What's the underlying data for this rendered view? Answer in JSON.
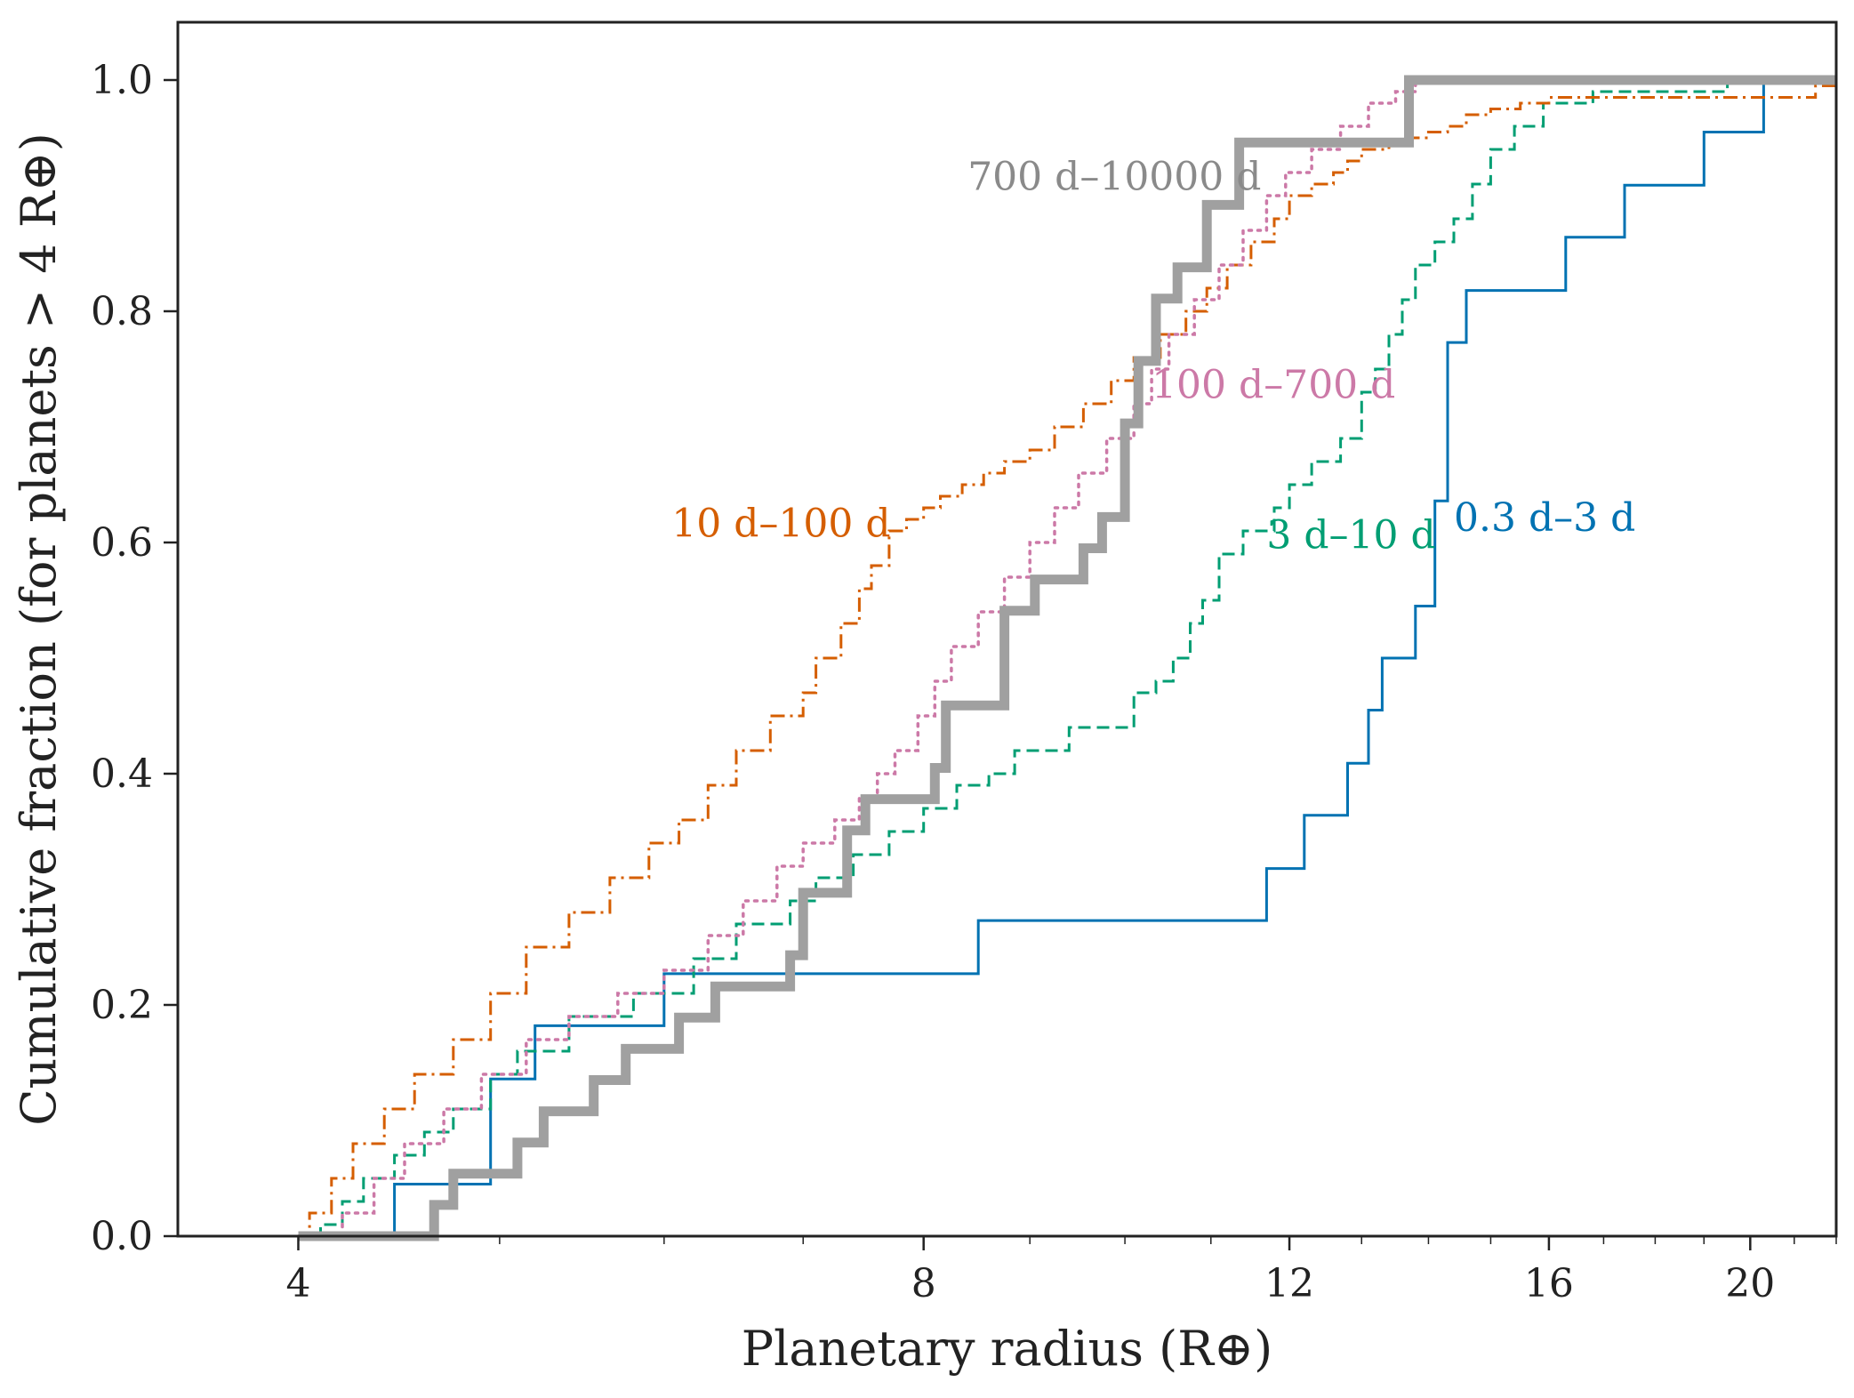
{
  "chart_data": {
    "type": "line",
    "step": true,
    "xlabel": "Planetary radius (R⊕)",
    "ylabel": "Cumulative fraction (for planets > 4 R⊕)",
    "xscale": "log",
    "xlim": [
      3.5,
      22
    ],
    "ylim": [
      0,
      1.05
    ],
    "x_ticks": [
      4,
      8,
      12,
      16,
      20
    ],
    "y_ticks": [
      0.0,
      0.2,
      0.4,
      0.6,
      0.8,
      1.0
    ],
    "x_tick_labels": [
      "4",
      "8",
      "12",
      "16",
      "20"
    ],
    "y_tick_labels": [
      "0.0",
      "0.2",
      "0.4",
      "0.6",
      "0.8",
      "1.0"
    ],
    "series": [
      {
        "name": "0.3 d–3 d",
        "label": "0.3 d–3 d",
        "color": "#0072B2",
        "style": "solid",
        "width": 3,
        "label_at": [
          14.4,
          0.61
        ],
        "x": [
          4.0,
          4.45,
          4.95,
          5.2,
          6.0,
          8.5,
          11.7,
          12.2,
          12.8,
          13.1,
          13.3,
          13.8,
          14.1,
          14.3,
          14.6,
          16.3,
          17.4,
          19.0,
          20.3,
          22
        ],
        "y": [
          0.0,
          0.045,
          0.136,
          0.182,
          0.227,
          0.273,
          0.318,
          0.364,
          0.409,
          0.455,
          0.5,
          0.545,
          0.636,
          0.773,
          0.818,
          0.864,
          0.909,
          0.955,
          1.0,
          1.0
        ]
      },
      {
        "name": "3 d–10 d",
        "label": "3 d–10 d",
        "color": "#009E73",
        "style": "dashed",
        "width": 3,
        "label_at": [
          11.7,
          0.595
        ],
        "x": [
          4.0,
          4.1,
          4.2,
          4.3,
          4.45,
          4.6,
          4.75,
          4.95,
          5.1,
          5.4,
          5.8,
          6.2,
          6.5,
          6.9,
          7.1,
          7.4,
          7.7,
          8.0,
          8.3,
          8.6,
          8.85,
          9.4,
          10.1,
          10.35,
          10.55,
          10.75,
          10.9,
          11.1,
          11.4,
          11.8,
          12.0,
          12.3,
          12.7,
          13.0,
          13.2,
          13.4,
          13.6,
          13.8,
          14.1,
          14.4,
          14.7,
          15.0,
          15.4,
          15.9,
          16.8,
          17.3,
          18.2,
          19.5,
          22
        ],
        "y": [
          0.0,
          0.01,
          0.03,
          0.05,
          0.07,
          0.09,
          0.11,
          0.14,
          0.16,
          0.19,
          0.21,
          0.24,
          0.27,
          0.29,
          0.31,
          0.33,
          0.35,
          0.37,
          0.39,
          0.4,
          0.42,
          0.44,
          0.47,
          0.48,
          0.5,
          0.53,
          0.55,
          0.59,
          0.61,
          0.63,
          0.65,
          0.67,
          0.69,
          0.73,
          0.75,
          0.78,
          0.81,
          0.84,
          0.86,
          0.88,
          0.91,
          0.94,
          0.96,
          0.98,
          0.99,
          0.99,
          0.99,
          1.0,
          1.0
        ]
      },
      {
        "name": "10 d–100 d",
        "label": "10 d–100 d",
        "color": "#D55E00",
        "style": "dashdot",
        "width": 3,
        "label_at": [
          6.05,
          0.605
        ],
        "x": [
          4.0,
          4.05,
          4.15,
          4.25,
          4.4,
          4.55,
          4.75,
          4.95,
          5.15,
          5.4,
          5.65,
          5.9,
          6.1,
          6.3,
          6.5,
          6.75,
          7.0,
          7.1,
          7.3,
          7.45,
          7.55,
          7.7,
          7.85,
          8.0,
          8.15,
          8.35,
          8.55,
          8.75,
          9.0,
          9.25,
          9.55,
          9.85,
          10.1,
          10.4,
          10.7,
          10.95,
          11.2,
          11.5,
          11.8,
          12.0,
          12.3,
          12.6,
          12.8,
          13.0,
          13.4,
          13.7,
          14.0,
          14.3,
          14.6,
          15.0,
          15.5,
          16.0,
          17.0,
          19.5,
          20.0,
          21.5,
          22
        ],
        "y": [
          0.0,
          0.02,
          0.05,
          0.08,
          0.11,
          0.14,
          0.17,
          0.21,
          0.25,
          0.28,
          0.31,
          0.34,
          0.36,
          0.39,
          0.42,
          0.45,
          0.47,
          0.5,
          0.53,
          0.56,
          0.58,
          0.61,
          0.62,
          0.63,
          0.64,
          0.65,
          0.66,
          0.67,
          0.68,
          0.7,
          0.72,
          0.74,
          0.76,
          0.78,
          0.8,
          0.82,
          0.84,
          0.86,
          0.88,
          0.9,
          0.91,
          0.92,
          0.93,
          0.94,
          0.945,
          0.95,
          0.955,
          0.96,
          0.97,
          0.975,
          0.98,
          0.985,
          0.985,
          0.985,
          0.985,
          0.995,
          1.0
        ]
      },
      {
        "name": "100 d–700 d",
        "label": "100 d–700 d",
        "color": "#CC79A7",
        "style": "dotted",
        "width": 3.5,
        "label_at": [
          10.3,
          0.725
        ],
        "x": [
          4.0,
          4.2,
          4.35,
          4.5,
          4.7,
          4.9,
          5.15,
          5.4,
          5.7,
          6.0,
          6.3,
          6.55,
          6.8,
          7.0,
          7.25,
          7.45,
          7.6,
          7.75,
          7.95,
          8.1,
          8.25,
          8.5,
          8.75,
          9.0,
          9.25,
          9.5,
          9.8,
          10.1,
          10.3,
          10.5,
          10.8,
          11.1,
          11.4,
          11.7,
          11.95,
          12.3,
          12.7,
          13.1,
          13.5,
          13.8,
          22
        ],
        "y": [
          0.0,
          0.02,
          0.05,
          0.08,
          0.11,
          0.14,
          0.17,
          0.19,
          0.21,
          0.23,
          0.26,
          0.29,
          0.32,
          0.34,
          0.36,
          0.38,
          0.4,
          0.42,
          0.45,
          0.48,
          0.51,
          0.54,
          0.57,
          0.6,
          0.63,
          0.66,
          0.69,
          0.72,
          0.75,
          0.78,
          0.81,
          0.84,
          0.87,
          0.9,
          0.92,
          0.94,
          0.96,
          0.98,
          0.99,
          1.0,
          1.0
        ]
      },
      {
        "name": "700 d–10000 d",
        "label": "700 d–10000 d",
        "color": "#a0a0a0",
        "style": "solid",
        "width": 11,
        "label_at": [
          8.4,
          0.905
        ],
        "x": [
          4.0,
          4.65,
          4.75,
          5.1,
          5.25,
          5.55,
          5.75,
          6.1,
          6.35,
          6.9,
          7.0,
          7.35,
          7.5,
          8.1,
          8.2,
          8.75,
          9.05,
          9.55,
          9.75,
          10.0,
          10.15,
          10.35,
          10.6,
          10.95,
          11.35,
          11.95,
          13.7,
          22
        ],
        "y": [
          0.0,
          0.027,
          0.054,
          0.081,
          0.108,
          0.135,
          0.162,
          0.189,
          0.216,
          0.243,
          0.297,
          0.351,
          0.378,
          0.405,
          0.459,
          0.541,
          0.568,
          0.595,
          0.622,
          0.703,
          0.757,
          0.811,
          0.838,
          0.892,
          0.946,
          0.946,
          1.0,
          1.0
        ]
      }
    ]
  }
}
